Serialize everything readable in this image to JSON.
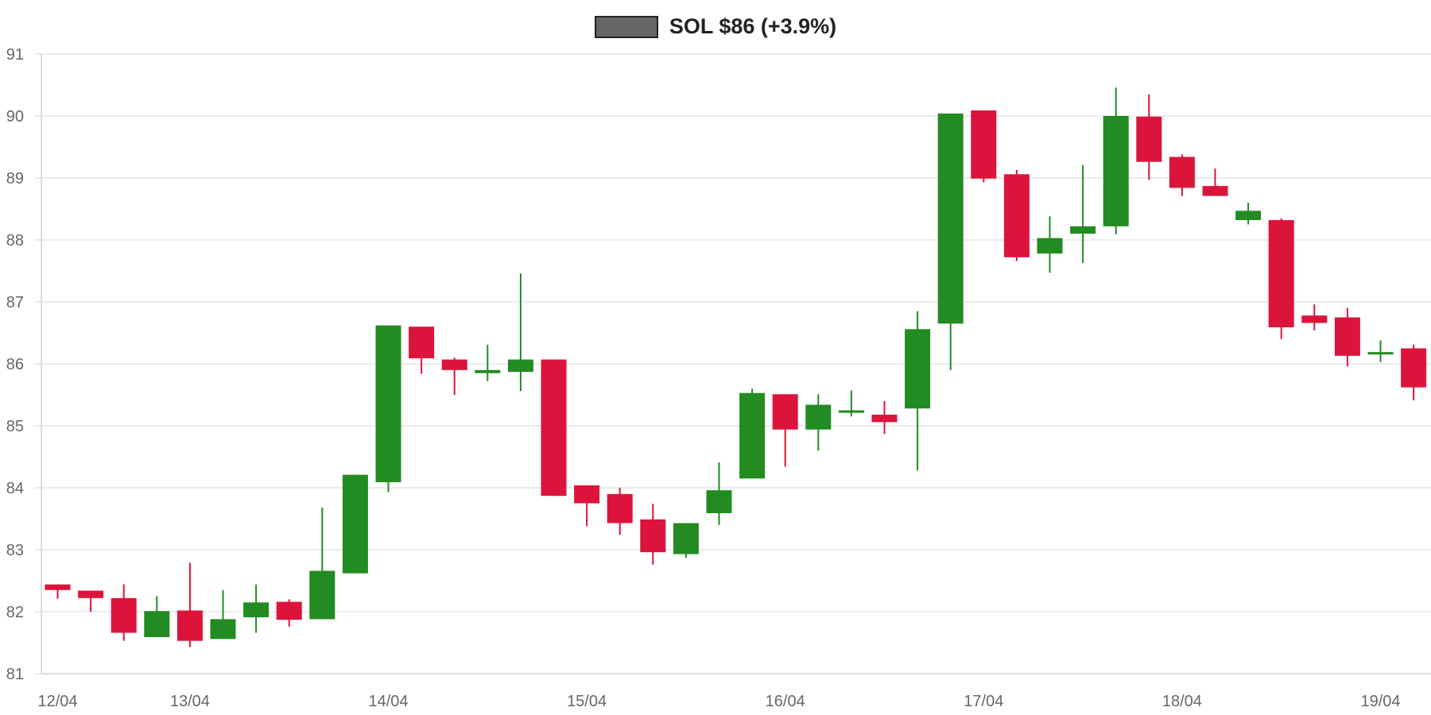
{
  "legend": {
    "label": "SOL $86 (+3.9%)",
    "swatch_color": "#666666"
  },
  "colors": {
    "up": "#228B22",
    "down": "#DC143C",
    "grid": "#ebebeb",
    "axis": "#dddddd",
    "tick_text": "#666666"
  },
  "chart_data": {
    "type": "candlestick",
    "title": "SOL $86 (+3.9%)",
    "xlabel": "",
    "ylabel": "",
    "ylim": [
      81,
      91
    ],
    "yticks": [
      81,
      82,
      83,
      84,
      85,
      86,
      87,
      88,
      89,
      90,
      91
    ],
    "xtick_labels": [
      {
        "label": "12/04",
        "index": 0
      },
      {
        "label": "13/04",
        "index": 4
      },
      {
        "label": "14/04",
        "index": 10
      },
      {
        "label": "15/04",
        "index": 16
      },
      {
        "label": "16/04",
        "index": 22
      },
      {
        "label": "17/04",
        "index": 28
      },
      {
        "label": "18/04",
        "index": 34
      },
      {
        "label": "19/04",
        "index": 40
      }
    ],
    "grid": true,
    "legend_position": "top-center",
    "candles": [
      {
        "o": 82.44,
        "h": 82.44,
        "l": 82.21,
        "c": 82.35
      },
      {
        "o": 82.34,
        "h": 82.34,
        "l": 82.0,
        "c": 82.22
      },
      {
        "o": 82.22,
        "h": 82.44,
        "l": 81.53,
        "c": 81.66
      },
      {
        "o": 81.59,
        "h": 82.25,
        "l": 81.59,
        "c": 82.01
      },
      {
        "o": 82.02,
        "h": 82.79,
        "l": 81.43,
        "c": 81.53
      },
      {
        "o": 81.56,
        "h": 82.35,
        "l": 81.56,
        "c": 81.88
      },
      {
        "o": 81.91,
        "h": 82.44,
        "l": 81.66,
        "c": 82.15
      },
      {
        "o": 82.16,
        "h": 82.2,
        "l": 81.76,
        "c": 81.87
      },
      {
        "o": 81.88,
        "h": 83.68,
        "l": 81.88,
        "c": 82.66
      },
      {
        "o": 82.62,
        "h": 84.21,
        "l": 82.62,
        "c": 84.21
      },
      {
        "o": 84.09,
        "h": 86.62,
        "l": 83.93,
        "c": 86.62
      },
      {
        "o": 86.6,
        "h": 86.6,
        "l": 85.84,
        "c": 86.09
      },
      {
        "o": 86.07,
        "h": 86.1,
        "l": 85.5,
        "c": 85.9
      },
      {
        "o": 85.85,
        "h": 86.31,
        "l": 85.72,
        "c": 85.9
      },
      {
        "o": 85.87,
        "h": 87.46,
        "l": 85.56,
        "c": 86.07
      },
      {
        "o": 86.07,
        "h": 86.07,
        "l": 83.87,
        "c": 83.87
      },
      {
        "o": 84.04,
        "h": 84.04,
        "l": 83.38,
        "c": 83.75
      },
      {
        "o": 83.9,
        "h": 84.0,
        "l": 83.24,
        "c": 83.43
      },
      {
        "o": 83.49,
        "h": 83.74,
        "l": 82.76,
        "c": 82.96
      },
      {
        "o": 82.93,
        "h": 83.43,
        "l": 82.87,
        "c": 83.43
      },
      {
        "o": 83.59,
        "h": 84.41,
        "l": 83.4,
        "c": 83.96
      },
      {
        "o": 84.15,
        "h": 85.6,
        "l": 84.15,
        "c": 85.53
      },
      {
        "o": 85.51,
        "h": 85.51,
        "l": 84.34,
        "c": 84.94
      },
      {
        "o": 84.94,
        "h": 85.51,
        "l": 84.6,
        "c": 85.34
      },
      {
        "o": 85.21,
        "h": 85.57,
        "l": 85.15,
        "c": 85.25
      },
      {
        "o": 85.18,
        "h": 85.4,
        "l": 84.87,
        "c": 85.06
      },
      {
        "o": 85.28,
        "h": 86.85,
        "l": 84.28,
        "c": 86.56
      },
      {
        "o": 86.65,
        "h": 90.04,
        "l": 85.9,
        "c": 90.04
      },
      {
        "o": 90.09,
        "h": 90.09,
        "l": 88.93,
        "c": 88.99
      },
      {
        "o": 89.06,
        "h": 89.13,
        "l": 87.66,
        "c": 87.72
      },
      {
        "o": 87.78,
        "h": 88.38,
        "l": 87.47,
        "c": 88.03
      },
      {
        "o": 88.1,
        "h": 89.21,
        "l": 87.63,
        "c": 88.22
      },
      {
        "o": 88.22,
        "h": 90.46,
        "l": 88.09,
        "c": 90.0
      },
      {
        "o": 89.99,
        "h": 90.35,
        "l": 88.97,
        "c": 89.26
      },
      {
        "o": 89.34,
        "h": 89.38,
        "l": 88.71,
        "c": 88.84
      },
      {
        "o": 88.87,
        "h": 89.15,
        "l": 88.71,
        "c": 88.71
      },
      {
        "o": 88.32,
        "h": 88.6,
        "l": 88.25,
        "c": 88.47
      },
      {
        "o": 88.32,
        "h": 88.35,
        "l": 86.4,
        "c": 86.59
      },
      {
        "o": 86.78,
        "h": 86.96,
        "l": 86.54,
        "c": 86.66
      },
      {
        "o": 86.75,
        "h": 86.9,
        "l": 85.96,
        "c": 86.13
      },
      {
        "o": 86.16,
        "h": 86.38,
        "l": 86.03,
        "c": 86.19
      },
      {
        "o": 86.25,
        "h": 86.31,
        "l": 85.41,
        "c": 85.62
      }
    ]
  }
}
